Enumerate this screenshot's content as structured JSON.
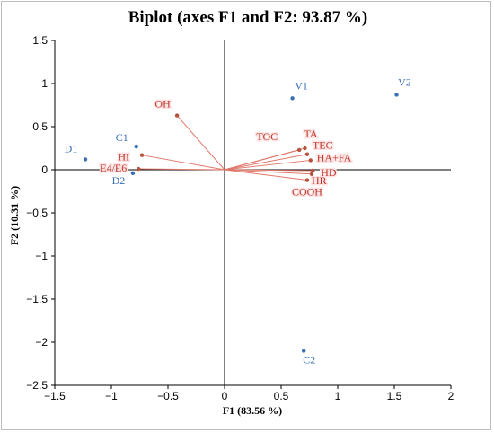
{
  "chart_data": {
    "type": "scatter",
    "title": "Biplot (axes F1 and F2: 93.87 %)",
    "xlabel": "F1 (83.56 %)",
    "ylabel": "F2 (10.31 %)",
    "xlim": [
      -1.5,
      2
    ],
    "ylim": [
      -2.5,
      1.5
    ],
    "x_ticks": [
      -1.5,
      -1,
      -0.5,
      0,
      0.5,
      1,
      1.5,
      2
    ],
    "y_ticks": [
      1.5,
      1,
      0.5,
      0,
      -0.5,
      -1,
      -1.5,
      -2,
      -2.5
    ],
    "x_tick_labels": [
      "−1.5",
      "−1",
      "−0.5",
      "0",
      "0.5",
      "1",
      "1.5",
      "2"
    ],
    "y_tick_labels": [
      "1.5",
      "1",
      "0.5",
      "0",
      "−0.5",
      "−1",
      "−1.5",
      "−2",
      "−2.5"
    ],
    "grid": false,
    "observations": [
      {
        "label": "D1",
        "x": -1.23,
        "y": 0.12
      },
      {
        "label": "C1",
        "x": -0.78,
        "y": 0.27
      },
      {
        "label": "D2",
        "x": -0.81,
        "y": -0.04
      },
      {
        "label": "V1",
        "x": 0.6,
        "y": 0.83
      },
      {
        "label": "V2",
        "x": 1.52,
        "y": 0.87
      },
      {
        "label": "C2",
        "x": 0.7,
        "y": -2.1
      }
    ],
    "variables": [
      {
        "label": "OH",
        "x": -0.42,
        "y": 0.63
      },
      {
        "label": "E4/E6",
        "x": -0.76,
        "y": 0.01
      },
      {
        "label": "HI",
        "x": -0.73,
        "y": 0.17
      },
      {
        "label": "TOC",
        "x": 0.66,
        "y": 0.23
      },
      {
        "label": "TA",
        "x": 0.71,
        "y": 0.25
      },
      {
        "label": "TEC",
        "x": 0.73,
        "y": 0.18
      },
      {
        "label": "HA+FA",
        "x": 0.76,
        "y": 0.11
      },
      {
        "label": "HD",
        "x": 0.78,
        "y": -0.01
      },
      {
        "label": "HR",
        "x": 0.77,
        "y": -0.05
      },
      {
        "label": "COOH",
        "x": 0.73,
        "y": -0.12
      }
    ],
    "colors": {
      "observations": "#3a6fb5",
      "variables": "#c0392b",
      "vectors": "#e0796c",
      "axes": "#000000"
    }
  }
}
